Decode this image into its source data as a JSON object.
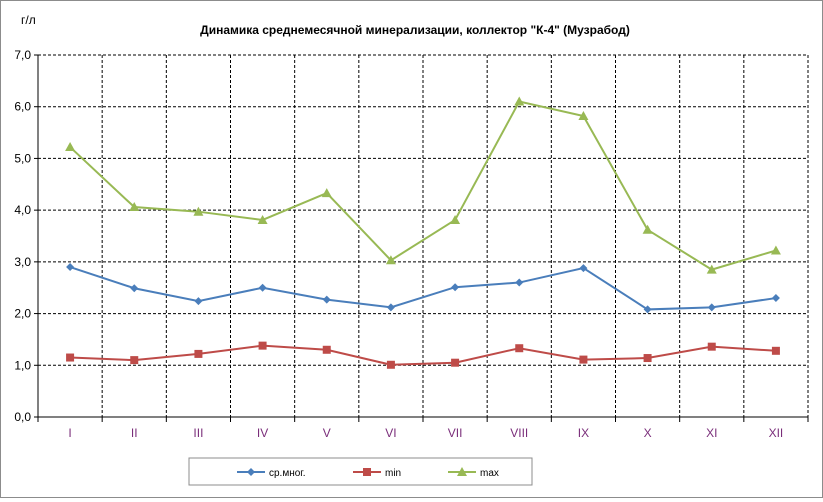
{
  "chart_data": {
    "type": "line",
    "title": "Динамика среднемесячной минерализации, коллектор \"К-4\" (Музрабод)",
    "ylabel": "г/л",
    "xlabel": "",
    "categories": [
      "I",
      "II",
      "III",
      "IV",
      "V",
      "VI",
      "VII",
      "VIII",
      "IX",
      "X",
      "XI",
      "XII"
    ],
    "ylim": [
      0,
      7
    ],
    "yticks": [
      "0,0",
      "1,0",
      "2,0",
      "3,0",
      "4,0",
      "5,0",
      "6,0",
      "7,0"
    ],
    "grid": true,
    "legend_position": "bottom",
    "series": [
      {
        "name": "ср.мног.",
        "color": "#4a7ebb",
        "marker": "diamond",
        "values": [
          2.9,
          2.49,
          2.24,
          2.5,
          2.27,
          2.12,
          2.51,
          2.6,
          2.88,
          2.08,
          2.12,
          2.3
        ]
      },
      {
        "name": "min",
        "color": "#be4b48",
        "marker": "square",
        "values": [
          1.15,
          1.1,
          1.22,
          1.38,
          1.3,
          1.01,
          1.05,
          1.33,
          1.11,
          1.14,
          1.36,
          1.28
        ]
      },
      {
        "name": "max",
        "color": "#98b954",
        "marker": "triangle",
        "values": [
          5.22,
          4.06,
          3.97,
          3.81,
          4.33,
          3.03,
          3.81,
          6.1,
          5.82,
          3.62,
          2.85,
          3.22
        ]
      }
    ]
  }
}
